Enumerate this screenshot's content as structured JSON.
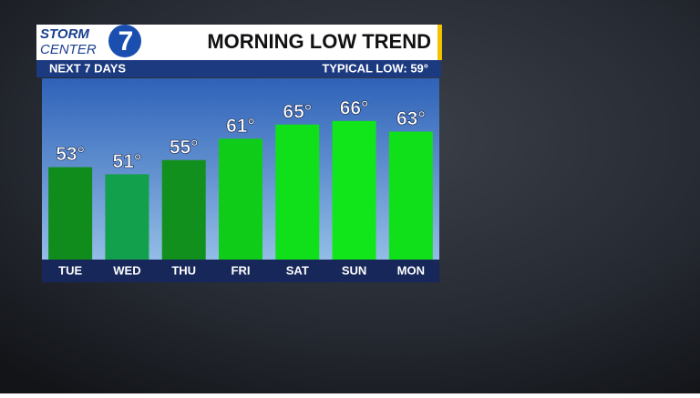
{
  "logo": {
    "line1": "STORM",
    "line2": "CENTER",
    "number": "7"
  },
  "chart_data": {
    "type": "bar",
    "title": "MORNING LOW TREND",
    "subtitle": "NEXT 7 DAYS",
    "annotation": "TYPICAL LOW:  59°",
    "categories": [
      "TUE",
      "WED",
      "THU",
      "FRI",
      "SAT",
      "SUN",
      "MON"
    ],
    "values": [
      53,
      51,
      55,
      61,
      65,
      66,
      63
    ],
    "value_labels": [
      "53°",
      "51°",
      "55°",
      "61°",
      "65°",
      "66°",
      "63°"
    ],
    "colors": [
      "#0f8c1c",
      "#12a04c",
      "#12901e",
      "#0ecc18",
      "#10e01a",
      "#10e61a",
      "#10e01a"
    ],
    "ylim": [
      27,
      78
    ]
  }
}
